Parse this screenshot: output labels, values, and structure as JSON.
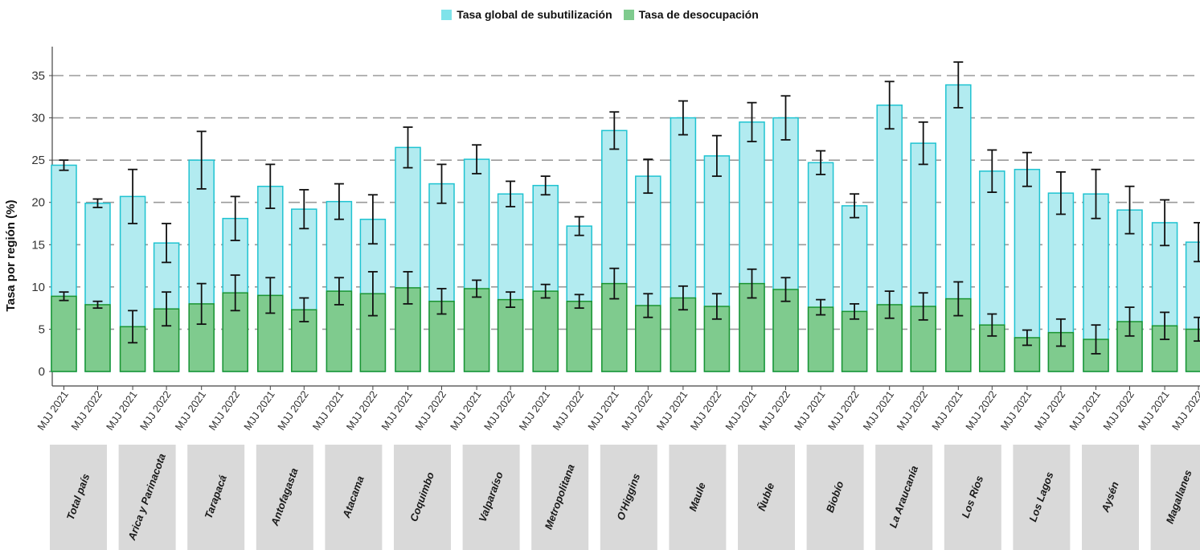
{
  "chart_data": {
    "type": "bar",
    "ylabel": "Tasa por región (%)",
    "xlabel": "",
    "ylim": [
      0,
      38
    ],
    "yticks": [
      0,
      5,
      10,
      15,
      20,
      25,
      30,
      35
    ],
    "grid": "horizontal dashed",
    "legend_position": "top",
    "periods": [
      "MJJ 2021",
      "MJJ 2022"
    ],
    "series": [
      {
        "name": "Tasa global de subutilización",
        "fill": "#b2ebf0",
        "stroke": "#1fc3d1",
        "values": [
          [
            24.4,
            19.9
          ],
          [
            20.7,
            15.2
          ],
          [
            25.0,
            18.1
          ],
          [
            21.9,
            19.2
          ],
          [
            20.1,
            18.0
          ],
          [
            26.5,
            22.2
          ],
          [
            25.1,
            21.0
          ],
          [
            22.0,
            17.2
          ],
          [
            28.5,
            23.1
          ],
          [
            30.0,
            25.5
          ],
          [
            29.5,
            30.0
          ],
          [
            24.7,
            19.6
          ],
          [
            31.5,
            27.0
          ],
          [
            33.9,
            23.7
          ],
          [
            23.9,
            21.1
          ],
          [
            21.0,
            19.1
          ],
          [
            17.6,
            15.3
          ]
        ],
        "errors": [
          [
            0.6,
            0.5
          ],
          [
            3.2,
            2.3
          ],
          [
            3.4,
            2.6
          ],
          [
            2.6,
            2.3
          ],
          [
            2.1,
            2.9
          ],
          [
            2.4,
            2.3
          ],
          [
            1.7,
            1.5
          ],
          [
            1.1,
            1.1
          ],
          [
            2.2,
            2.0
          ],
          [
            2.0,
            2.4
          ],
          [
            2.3,
            2.6
          ],
          [
            1.4,
            1.4
          ],
          [
            2.8,
            2.5
          ],
          [
            2.7,
            2.5
          ],
          [
            2.0,
            2.5
          ],
          [
            2.9,
            2.8
          ],
          [
            2.7,
            2.3
          ]
        ]
      },
      {
        "name": "Tasa de desocupación",
        "fill": "#7fcb8e",
        "stroke": "#1a9431",
        "values": [
          [
            8.9,
            7.9
          ],
          [
            5.3,
            7.4
          ],
          [
            8.0,
            9.3
          ],
          [
            9.0,
            7.3
          ],
          [
            9.5,
            9.2
          ],
          [
            9.9,
            8.3
          ],
          [
            9.8,
            8.5
          ],
          [
            9.5,
            8.3
          ],
          [
            10.4,
            7.8
          ],
          [
            8.7,
            7.7
          ],
          [
            10.4,
            9.7
          ],
          [
            7.6,
            7.1
          ],
          [
            7.9,
            7.7
          ],
          [
            8.6,
            5.5
          ],
          [
            4.0,
            4.6
          ],
          [
            3.8,
            5.9
          ],
          [
            5.4,
            5.0
          ]
        ],
        "errors": [
          [
            0.5,
            0.4
          ],
          [
            1.9,
            2.0
          ],
          [
            2.4,
            2.1
          ],
          [
            2.1,
            1.4
          ],
          [
            1.6,
            2.6
          ],
          [
            1.9,
            1.5
          ],
          [
            1.0,
            0.9
          ],
          [
            0.8,
            0.8
          ],
          [
            1.8,
            1.4
          ],
          [
            1.4,
            1.5
          ],
          [
            1.7,
            1.4
          ],
          [
            0.9,
            0.9
          ],
          [
            1.6,
            1.6
          ],
          [
            2.0,
            1.3
          ],
          [
            0.9,
            1.6
          ],
          [
            1.7,
            1.7
          ],
          [
            1.6,
            1.4
          ]
        ]
      }
    ],
    "regions": [
      "Total país",
      "Arica y Parinacota",
      "Tarapacá",
      "Antofagasta",
      "Atacama",
      "Coquimbo",
      "Valparaíso",
      "Metropolitana",
      "O'Higgins",
      "Maule",
      "Ñuble",
      "Biobío",
      "La Araucanía",
      "Los Ríos",
      "Los Lagos",
      "Aysén",
      "Magallanes"
    ]
  }
}
